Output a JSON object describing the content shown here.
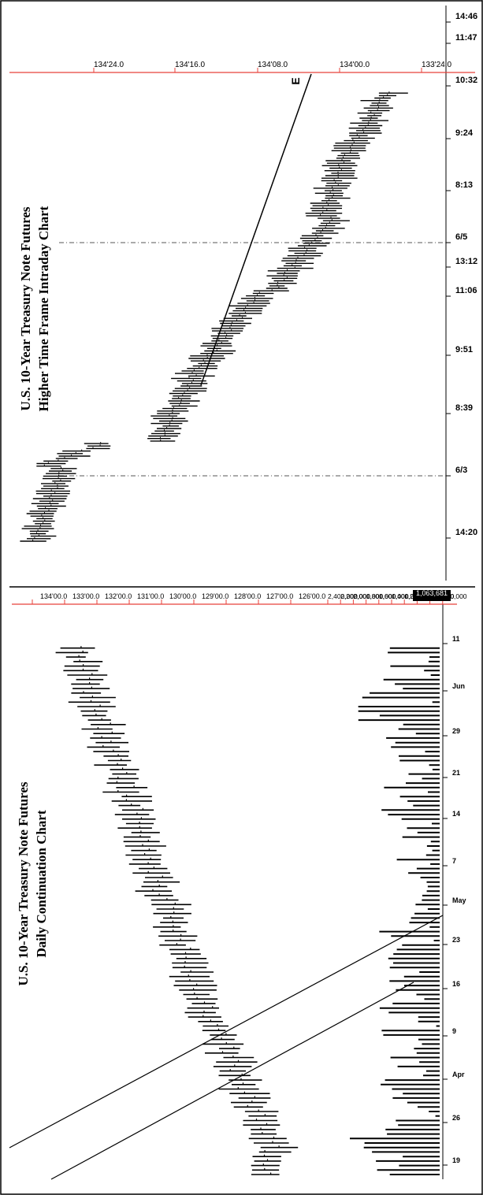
{
  "page": {
    "border_color": "#000000",
    "accent": "#e8413a"
  },
  "charts": [
    {
      "id": "daily",
      "type": "bar",
      "title": "U.S. 10-Year Treasury Note Futures",
      "subtitle": "Daily Continuation Chart",
      "price_axis_labels": [
        "134'00.0",
        "133'00.0",
        "132'00.0",
        "131'00.0",
        "130'00.0",
        "129'00.0",
        "128'00.0",
        "127'00.0",
        "126'00.0"
      ],
      "price_values": [
        134,
        133,
        132,
        131,
        130,
        129,
        128,
        127,
        126
      ],
      "volume_axis_labels": [
        "2,400,000",
        "2,200,000",
        "2,000,000",
        "1,800,000",
        "1,600,000",
        "1,400,000",
        "1,200,000",
        "1,000,000",
        "800,000",
        "600,000"
      ],
      "volume_values": [
        2400000,
        2200000,
        2000000,
        1800000,
        1600000,
        1400000,
        1200000,
        1000000,
        800000,
        600000
      ],
      "last_volume_label": "1,063,681",
      "date_labels": [
        "19",
        "26",
        "Apr",
        "9",
        "16",
        "23",
        "May",
        "7",
        "14",
        "21",
        "29",
        "Jun",
        "11"
      ],
      "trendlines": "two parallel rising lines",
      "line_color": "#000000",
      "axis_color": "#e8413a"
    },
    {
      "id": "intraday",
      "type": "bar",
      "title": "U.S. 10-Year Treasury Note Futures",
      "subtitle": "Higher Time Frame Intraday Chart",
      "price_axis_labels": [
        "134'24.0",
        "134'16.0",
        "134'08.0",
        "134'00.0",
        "133'24.0"
      ],
      "price_values_32nds": [
        134.75,
        134.5,
        134.25,
        134.0,
        133.75
      ],
      "time_labels": [
        "14:20",
        "6/3",
        "8:39",
        "9:51",
        "11:06",
        "13:12",
        "6/5",
        "8:13",
        "9:24",
        "10:32",
        "11:47",
        "14:46"
      ],
      "session_breaks": [
        "6/3",
        "6/5"
      ],
      "trendline_label": "E",
      "line_color": "#000000",
      "axis_color": "#e8413a"
    }
  ]
}
